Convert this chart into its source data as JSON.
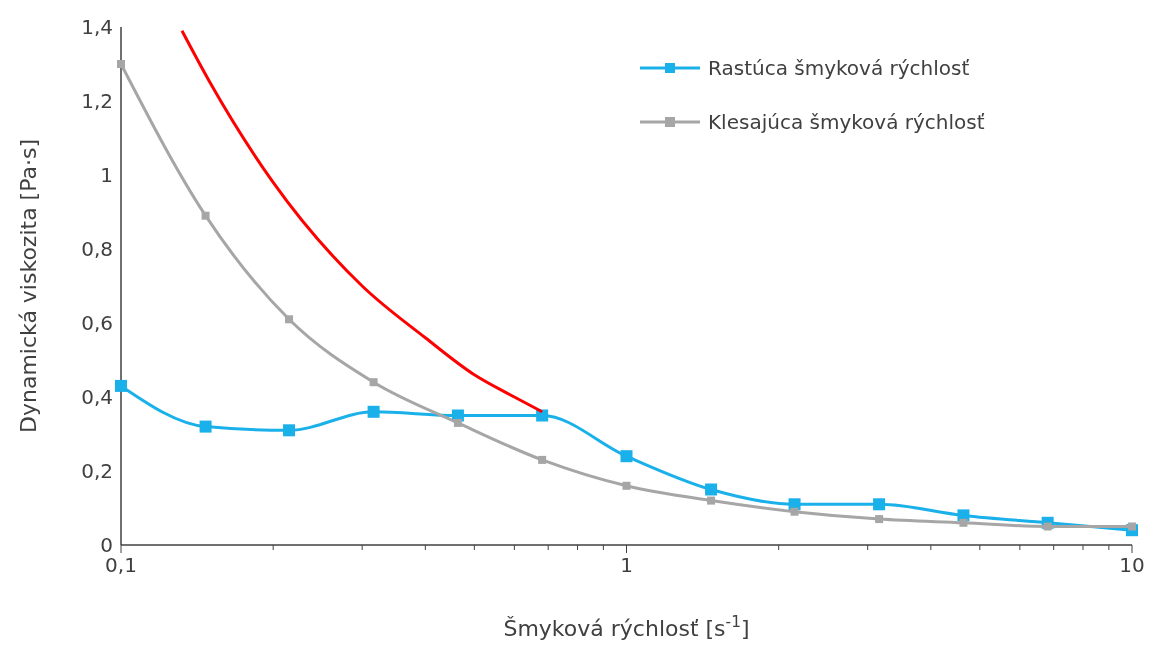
{
  "chart_data": {
    "type": "line",
    "xlabel": "Šmyková rýchlosť [s$^{-1}$]",
    "ylabel": "Dynamická viskozita [Pa·s]",
    "log": "x",
    "xlim": [
      0.1,
      10
    ],
    "ylim": [
      0,
      1.4
    ],
    "xticks": [
      {
        "value": 0.1,
        "label": "0,1"
      },
      {
        "value": 0.2,
        "label": null
      },
      {
        "value": 0.3,
        "label": null
      },
      {
        "value": 0.4,
        "label": null
      },
      {
        "value": 0.5,
        "label": null
      },
      {
        "value": 0.6,
        "label": null
      },
      {
        "value": 0.7,
        "label": null
      },
      {
        "value": 0.8,
        "label": null
      },
      {
        "value": 0.9,
        "label": null
      },
      {
        "value": 1,
        "label": "1"
      },
      {
        "value": 2,
        "label": null
      },
      {
        "value": 3,
        "label": null
      },
      {
        "value": 4,
        "label": null
      },
      {
        "value": 5,
        "label": null
      },
      {
        "value": 6,
        "label": null
      },
      {
        "value": 7,
        "label": null
      },
      {
        "value": 8,
        "label": null
      },
      {
        "value": 9,
        "label": null
      },
      {
        "value": 10,
        "label": "10"
      }
    ],
    "yticks": [
      {
        "value": 0,
        "label": "0"
      },
      {
        "value": 0.2,
        "label": "0,2"
      },
      {
        "value": 0.4,
        "label": "0,4"
      },
      {
        "value": 0.6,
        "label": "0,6"
      },
      {
        "value": 0.8,
        "label": "0,8"
      },
      {
        "value": 1,
        "label": "1"
      },
      {
        "value": 1.2,
        "label": "1,2"
      },
      {
        "value": 1.4,
        "label": "1,4"
      }
    ],
    "grid": false,
    "legend": "top right",
    "marker": "square",
    "x": [
      0.1,
      0.147,
      0.215,
      0.316,
      0.464,
      0.681,
      1,
      1.47,
      2.15,
      3.16,
      4.64,
      6.81,
      10
    ],
    "series": [
      {
        "name": "Rastúca šmyková rýchlosť",
        "color": "#1ab0ea",
        "values": [
          0.43,
          0.32,
          0.31,
          0.36,
          0.35,
          0.35,
          0.24,
          0.15,
          0.11,
          0.11,
          0.08,
          0.06,
          0.04
        ]
      },
      {
        "name": "Klesajúca šmyková rýchlosť",
        "color": "#a6a6a6",
        "values": [
          1.3,
          0.89,
          0.61,
          0.44,
          0.33,
          0.23,
          0.16,
          0.12,
          0.09,
          0.07,
          0.06,
          0.05,
          0.05
        ]
      },
      {
        "color": "#ff0000",
        "marker": "none",
        "x": [
          0.132,
          0.15,
          0.2,
          0.3,
          0.4,
          0.5,
          0.6,
          0.681
        ],
        "values": [
          1.39,
          1.25,
          0.98,
          0.7,
          0.56,
          0.46,
          0.4,
          0.36
        ]
      }
    ]
  }
}
